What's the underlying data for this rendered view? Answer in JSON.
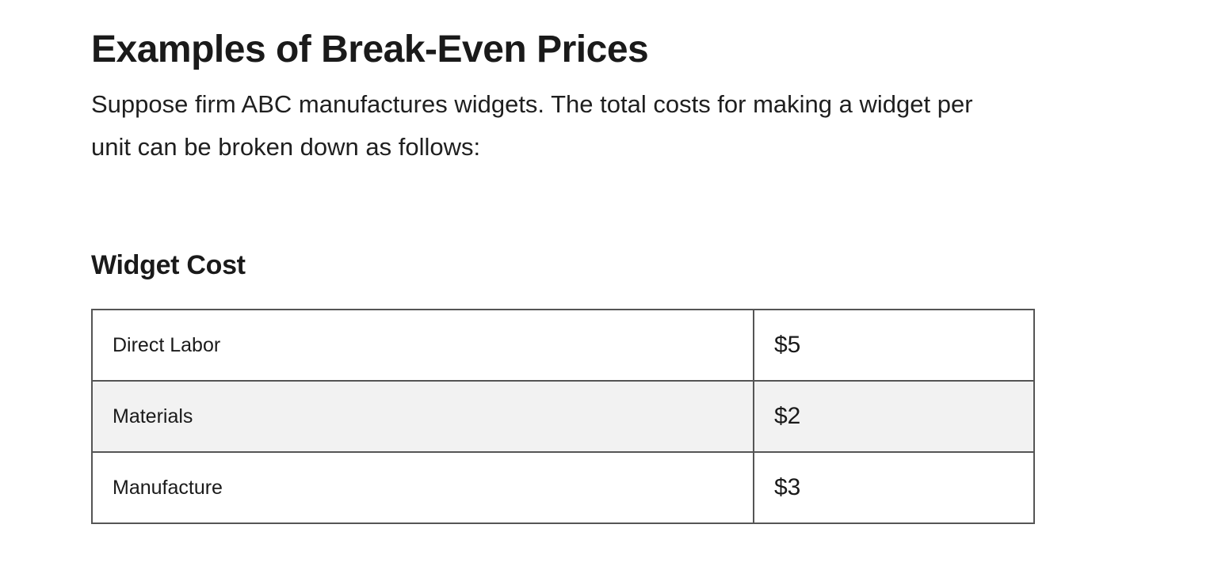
{
  "article": {
    "title": "Examples of Break-Even Prices",
    "intro": "Suppose firm ABC manufactures widgets. The total costs for making a widget per unit can be broken down as follows:",
    "section_title": "Widget Cost",
    "table": {
      "rows": [
        {
          "item": "Direct Labor",
          "cost": "$5"
        },
        {
          "item": "Materials",
          "cost": "$2"
        },
        {
          "item": "Manufacture",
          "cost": "$3"
        }
      ]
    }
  }
}
